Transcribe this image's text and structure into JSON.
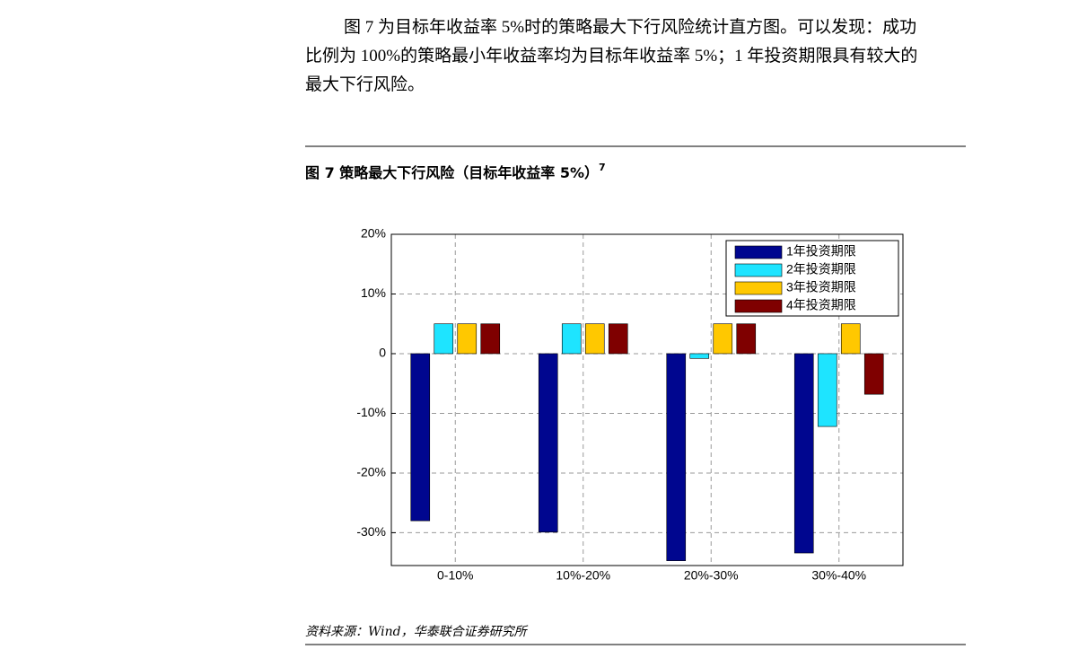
{
  "paragraph": [
    "图 7 为目标年收益率 5%时的策略最大下行风险统计直方图。可以发现：成功",
    "比例为 100%的策略最小年收益率均为目标年收益率 5%；1 年投资期限具有较大的",
    "最大下行风险。"
  ],
  "figure": {
    "caption": "图 7  策略最大下行风险（目标年收益率 5%）",
    "footnote_mark": "7"
  },
  "source": "资料来源：Wind，华泰联合证券研究所",
  "chart_data": {
    "type": "bar",
    "categories": [
      "0-10%",
      "10%-20%",
      "20%-30%",
      "30%-40%"
    ],
    "series": [
      {
        "name": "1年投资期限",
        "color": "#00068f",
        "values": [
          -28,
          -29.9,
          -34.7,
          -33.4
        ]
      },
      {
        "name": "2年投资期限",
        "color": "#1ee4ff",
        "values": [
          5,
          5,
          -0.8,
          -12.2
        ]
      },
      {
        "name": "3年投资期限",
        "color": "#ffc800",
        "values": [
          5,
          5,
          5,
          5
        ]
      },
      {
        "name": "4年投资期限",
        "color": "#7f0000",
        "values": [
          5,
          5,
          5,
          -6.8
        ]
      }
    ],
    "ylim": [
      -35.5,
      20
    ],
    "yticks": [
      {
        "value": 20,
        "label": "20%"
      },
      {
        "value": 10,
        "label": "10%"
      },
      0,
      {
        "value": -10,
        "label": "-10%"
      },
      {
        "value": -20,
        "label": "-20%"
      },
      {
        "value": -30,
        "label": "-30%"
      }
    ],
    "grid": true,
    "legend": "top-right"
  }
}
